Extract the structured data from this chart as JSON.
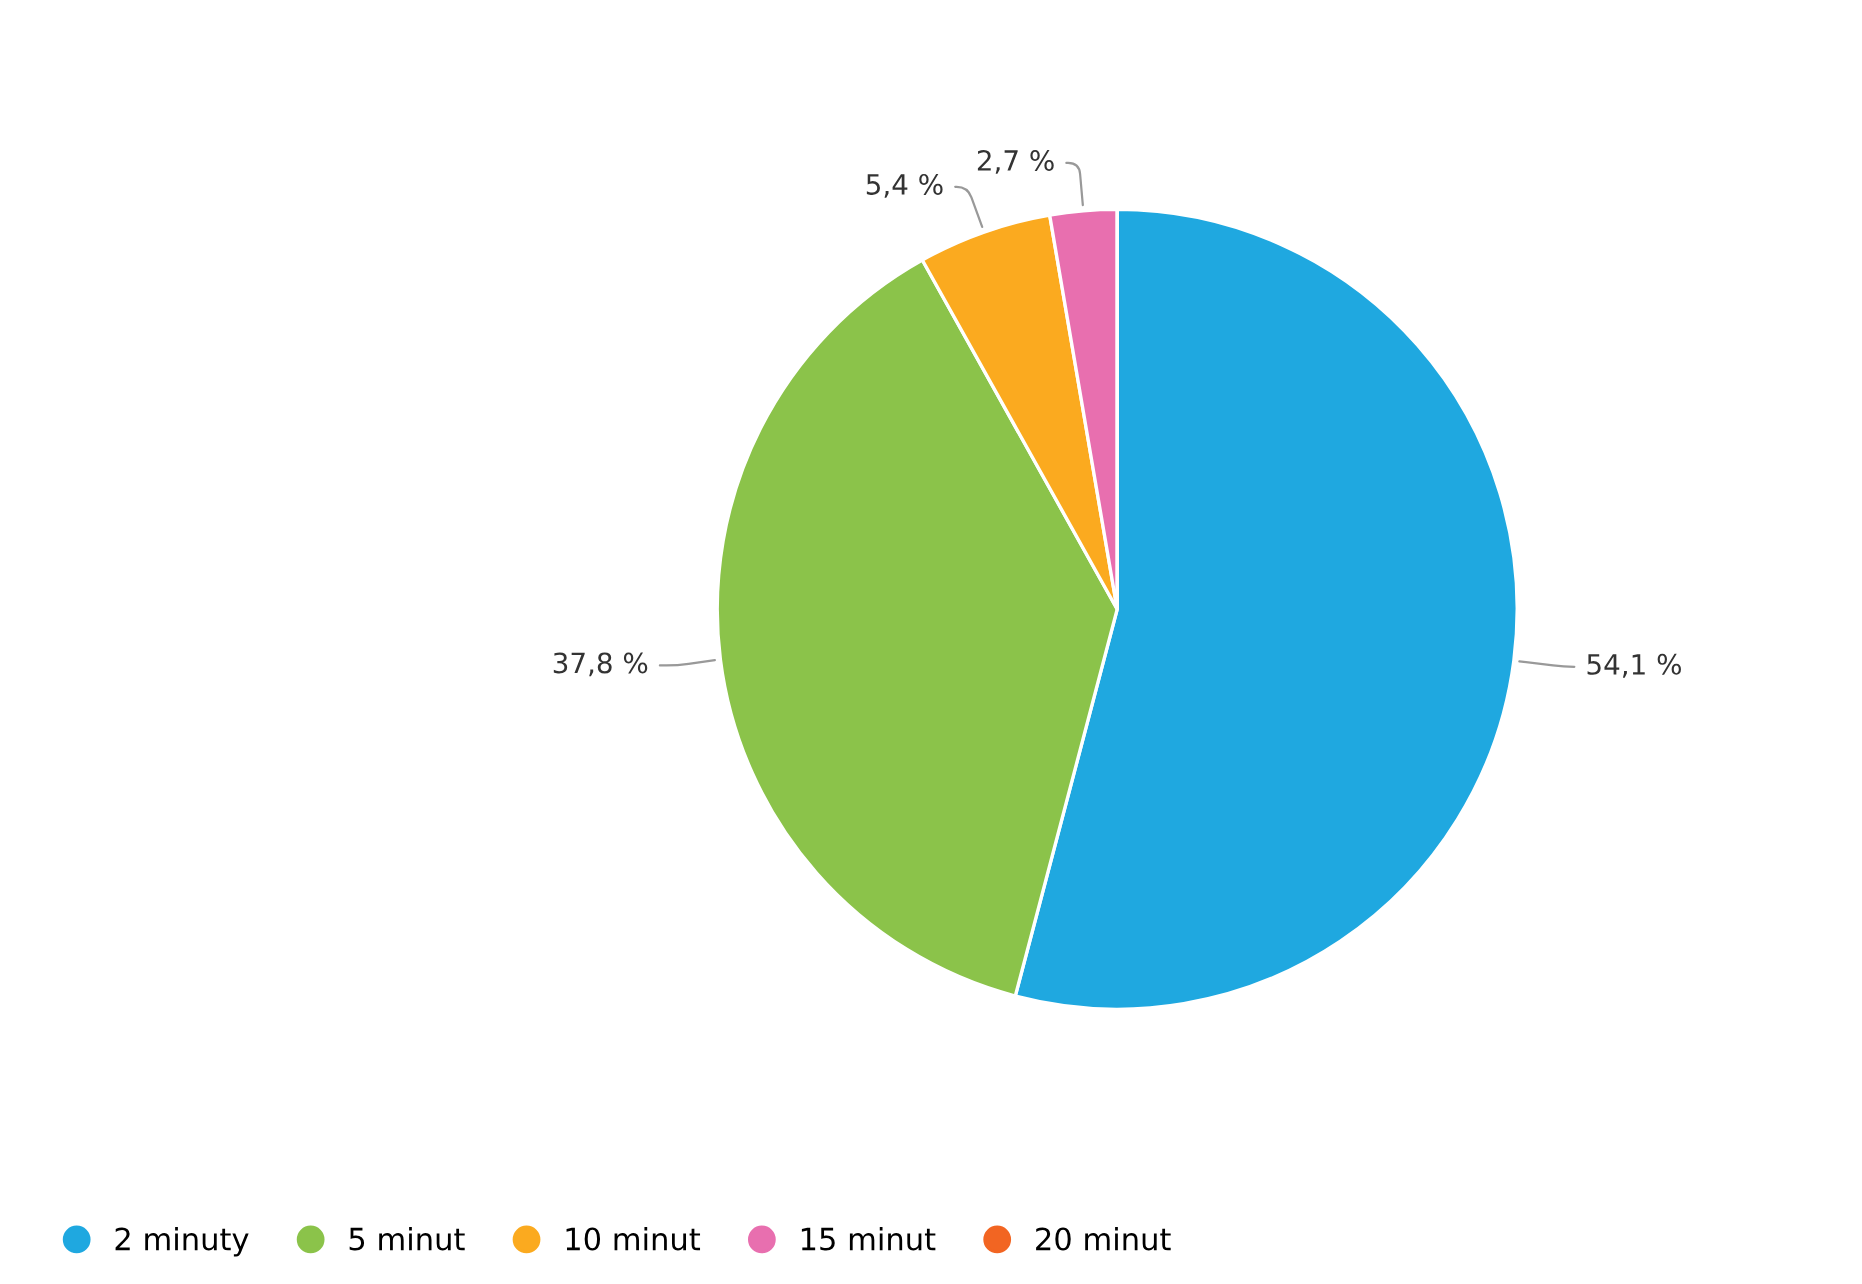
{
  "chart_data": {
    "type": "pie",
    "categories": [
      "2 minuty",
      "5 minut",
      "10 minut",
      "15 minut",
      "20 minut"
    ],
    "values": [
      54.1,
      37.8,
      5.4,
      2.7,
      0
    ],
    "value_labels": [
      "54,1 %",
      "37,8 %",
      "5,4 %",
      "2,7 %",
      null
    ],
    "colors": [
      "#1fa8e0",
      "#8bc34a",
      "#fbaa1f",
      "#e86faf",
      "#f26522"
    ],
    "legend": "bottom left"
  }
}
